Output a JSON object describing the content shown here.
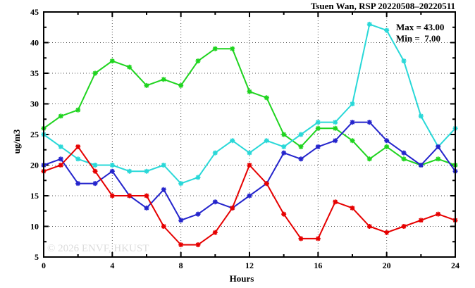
{
  "title": "Tsuen Wan, RSP 20220508–20220511",
  "annotations": {
    "max_label": "Max = 43.00",
    "min_label": "Min =  7.00"
  },
  "watermark": "© 2026 ENVF, HKUST",
  "chart_data": {
    "type": "line",
    "title": "Tsuen Wan, RSP 20220508–20220511",
    "xlabel": "Hours",
    "ylabel": "ug/m3",
    "xlim": [
      0,
      24
    ],
    "ylim": [
      5,
      45
    ],
    "x_major_ticks": [
      0,
      4,
      8,
      12,
      16,
      20,
      24
    ],
    "x_minor_step": 2,
    "y_major_ticks": [
      5,
      10,
      15,
      20,
      25,
      30,
      35,
      40,
      45
    ],
    "y_minor_step": 2.5,
    "grid": "dotted lines at interior major ticks, both axes",
    "legend": "none",
    "marker": "asterisk-star",
    "x": [
      0,
      1,
      2,
      3,
      4,
      5,
      6,
      7,
      8,
      9,
      10,
      11,
      12,
      13,
      14,
      15,
      16,
      17,
      18,
      19,
      20,
      21,
      22,
      23,
      24
    ],
    "series": [
      {
        "name": "green",
        "color": "#1fd41f",
        "values": [
          26,
          28,
          29,
          35,
          37,
          36,
          33,
          34,
          33,
          37,
          39,
          39,
          32,
          31,
          25,
          23,
          26,
          26,
          24,
          21,
          23,
          21,
          20,
          21,
          20
        ]
      },
      {
        "name": "cyan",
        "color": "#29d8d8",
        "values": [
          25,
          23,
          21,
          20,
          20,
          19,
          19,
          20,
          17,
          18,
          22,
          24,
          22,
          24,
          23,
          25,
          27,
          27,
          30,
          43,
          42,
          37,
          28,
          23,
          26
        ]
      },
      {
        "name": "blue",
        "color": "#2424cc",
        "values": [
          20,
          21,
          17,
          17,
          19,
          15,
          13,
          16,
          11,
          12,
          14,
          13,
          15,
          17,
          22,
          21,
          23,
          24,
          27,
          27,
          24,
          22,
          20,
          23,
          19
        ]
      },
      {
        "name": "red",
        "color": "#e60000",
        "values": [
          19,
          20,
          23,
          19,
          15,
          15,
          15,
          10,
          7,
          7,
          9,
          13,
          20,
          17,
          12,
          8,
          8,
          14,
          13,
          10,
          9,
          10,
          11,
          12,
          11
        ]
      }
    ],
    "stats": {
      "max": 43.0,
      "min": 7.0
    }
  }
}
